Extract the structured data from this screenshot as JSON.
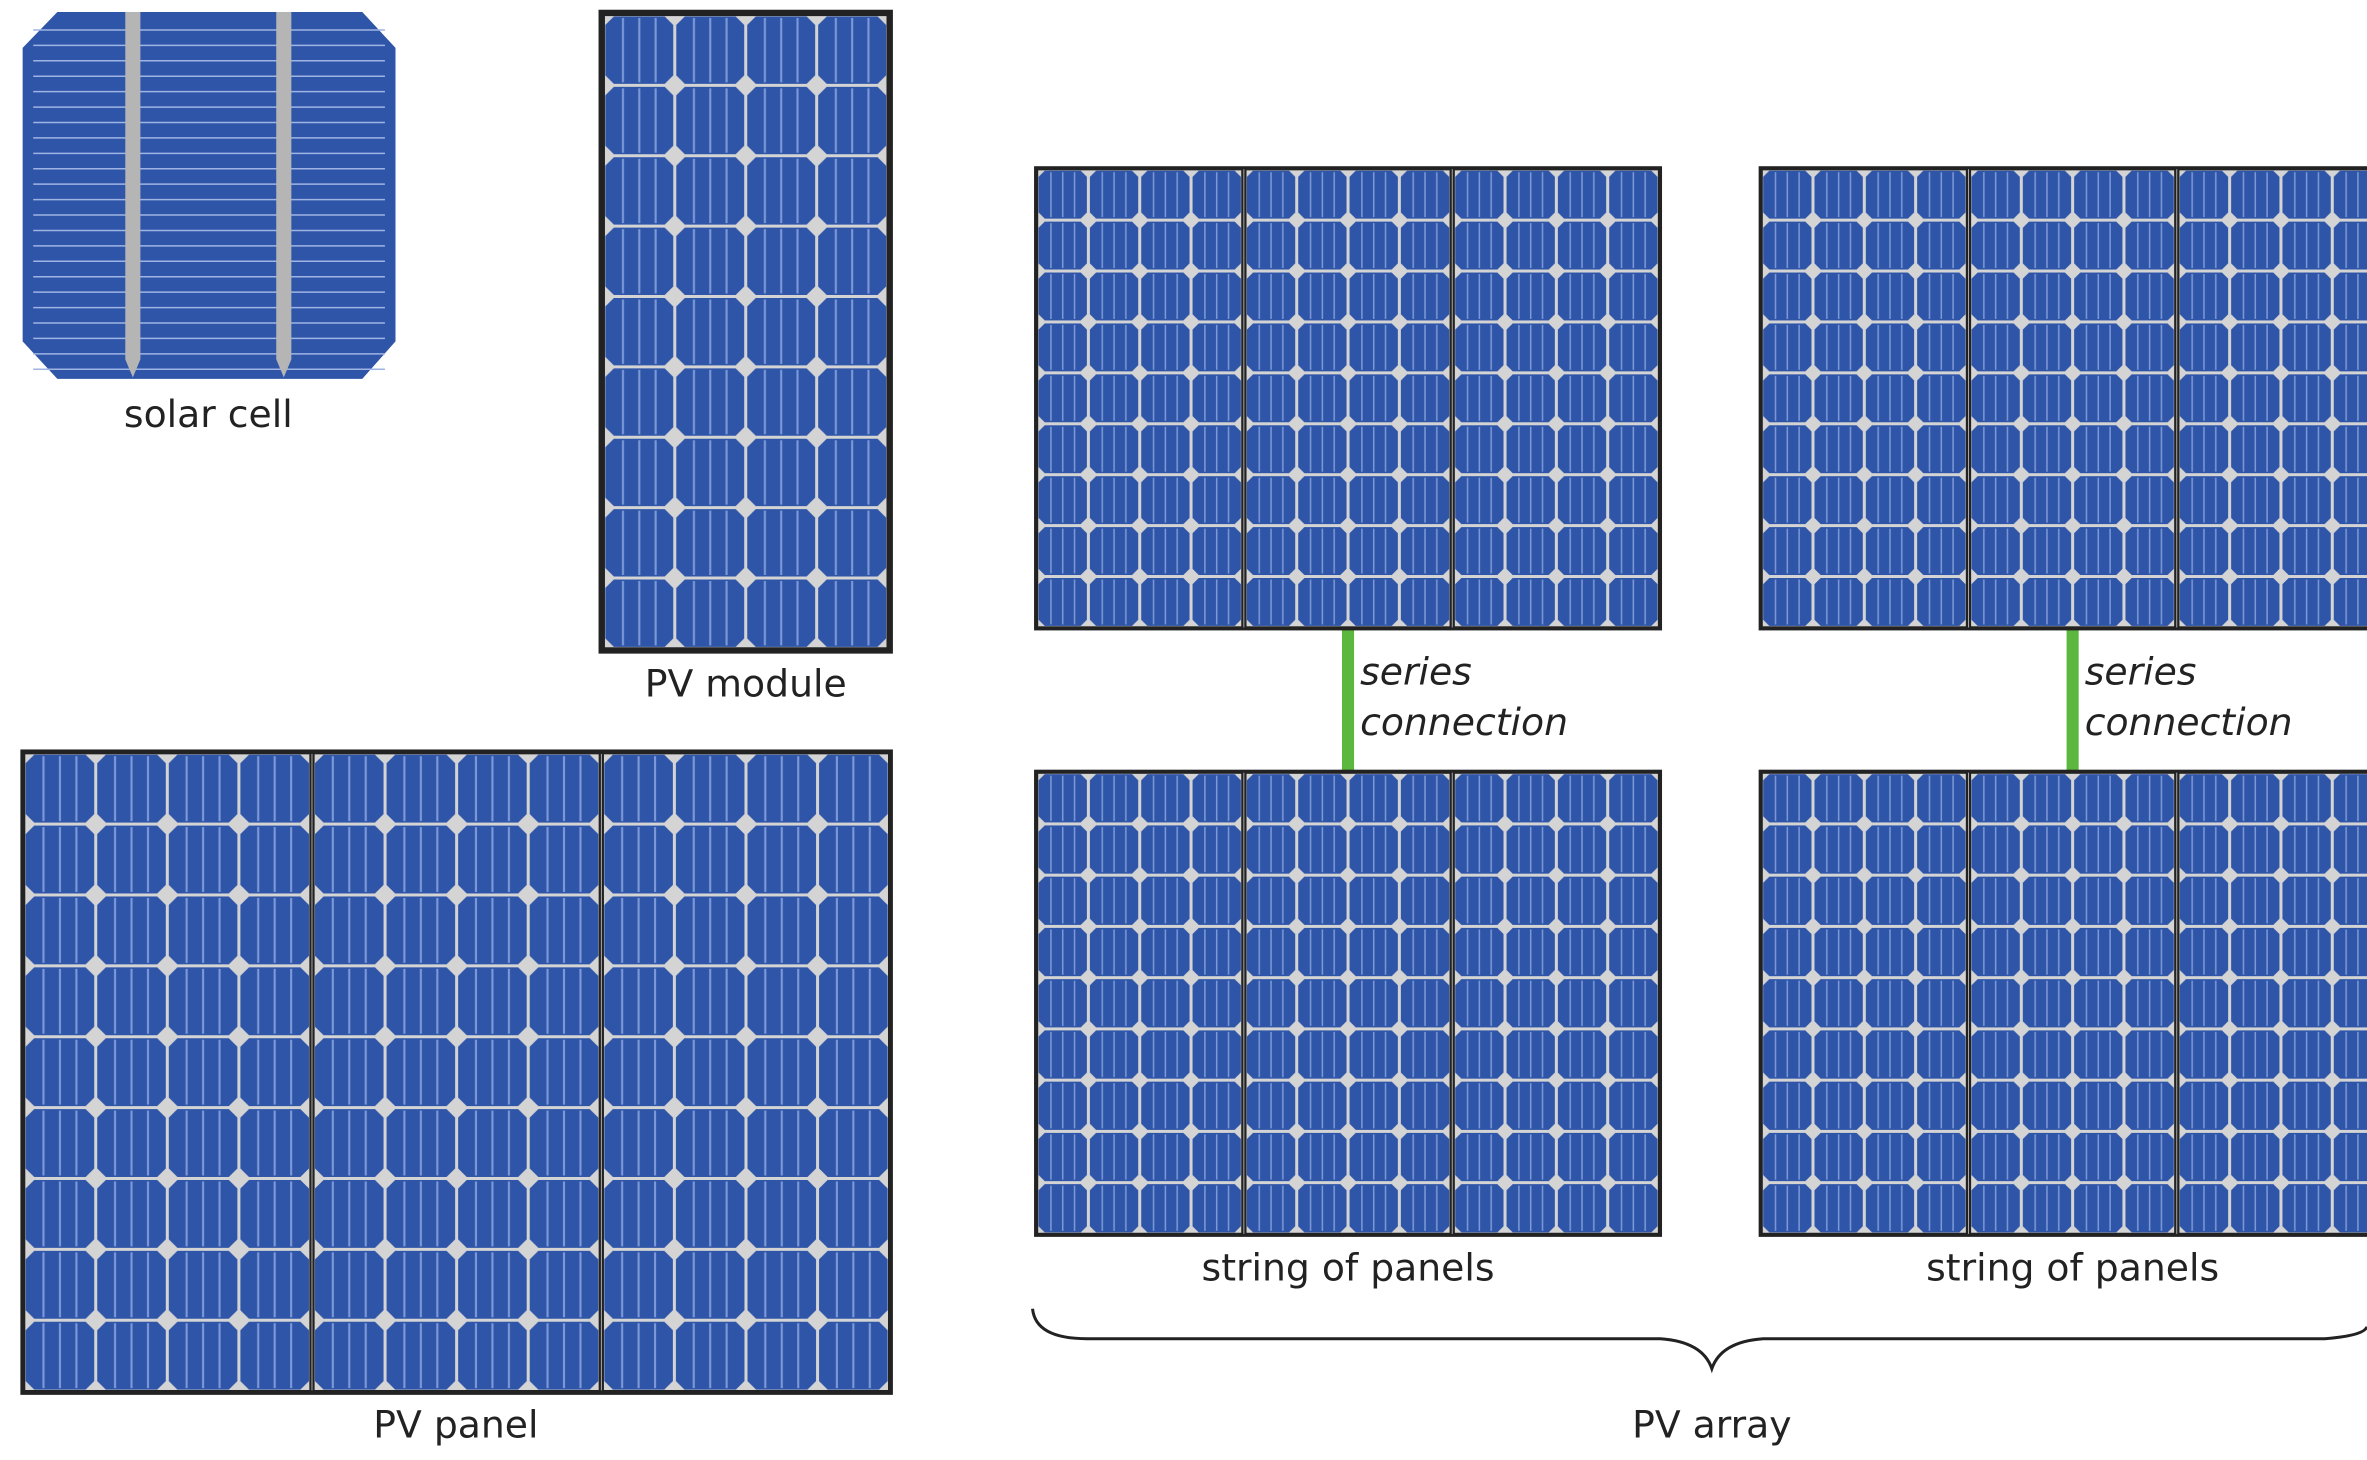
{
  "labels": {
    "solar_cell": "solar cell",
    "pv_module": "PV module",
    "pv_panel": "PV panel",
    "strings": [
      {
        "label": "string of panels",
        "connection": [
          "series",
          "connection"
        ]
      },
      {
        "label": "string of panels",
        "connection": [
          "series",
          "connection"
        ]
      }
    ],
    "pv_array": "PV array"
  }
}
